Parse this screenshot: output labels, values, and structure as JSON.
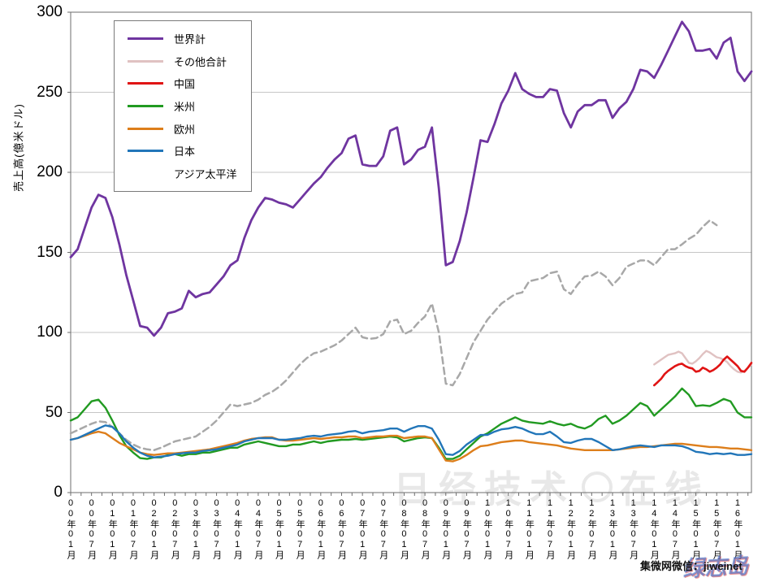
{
  "y_axis": {
    "title": "売上高(億米ドル)",
    "ticks": [
      300,
      250,
      200,
      150,
      100,
      50,
      0
    ],
    "min": 0,
    "max": 300
  },
  "x_axis": {
    "labels": [
      "00年01月",
      "00年07月",
      "01年01月",
      "01年07月",
      "02年01月",
      "02年07月",
      "03年01月",
      "03年07月",
      "04年01月",
      "04年07月",
      "05年01月",
      "05年07月",
      "06年01月",
      "06年07月",
      "07年01月",
      "07年07月",
      "08年01月",
      "08年07月",
      "09年01月",
      "09年07月",
      "10年01月",
      "10年07月",
      "11年01月",
      "11年07月",
      "12年01月",
      "12年07月",
      "13年01月",
      "13年07月",
      "14年01月",
      "14年07月",
      "15年01月",
      "15年07月",
      "16年01月"
    ],
    "months_per_label": 6
  },
  "legend": {
    "items": [
      "世界計",
      "その他合計",
      "中国",
      "米州",
      "欧州",
      "日本",
      "アジア太平洋"
    ]
  },
  "watermarks": {
    "center_part1": "日经技术",
    "center_part2": "在线",
    "bottom_black": "集微网微信：jiweinet",
    "bottom_color": "绿志岛"
  },
  "chart_data": {
    "type": "line",
    "title": "",
    "ylabel": "売上高(億米ドル)",
    "ylim": [
      0,
      300
    ],
    "x_unit": "month",
    "x_start": "2000-01",
    "x_end": "2016-05",
    "total_months": 196,
    "grid": "horizontal",
    "legend_position": "upper-left-inside",
    "series": [
      {
        "name": "世界計",
        "key": "world-total",
        "color": "#6f35a0",
        "style": "solid",
        "width": 2.8,
        "start_month": 0,
        "step": 2,
        "values": [
          147,
          152,
          165,
          178,
          186,
          184,
          172,
          155,
          136,
          120,
          104,
          103,
          98,
          103,
          112,
          113,
          115,
          126,
          122,
          124,
          125,
          130,
          135,
          142,
          145,
          159,
          170,
          178,
          184,
          183,
          181,
          180,
          178,
          183,
          188,
          193,
          197,
          203,
          208,
          212,
          221,
          223,
          205,
          204,
          204,
          210,
          226,
          228,
          205,
          208,
          214,
          216,
          228,
          190,
          142,
          144,
          157,
          175,
          197,
          220,
          219,
          230,
          243,
          251,
          262,
          252,
          249,
          247,
          247,
          252,
          251,
          237,
          228,
          238,
          242,
          242,
          245,
          245,
          234,
          240,
          244,
          252,
          264,
          263,
          259,
          267,
          276,
          285,
          294,
          288,
          276,
          276,
          277,
          271,
          281,
          284,
          263,
          257,
          263
        ]
      },
      {
        "name": "その他合計",
        "key": "other-total",
        "color": "#e0c2c2",
        "style": "solid",
        "width": 2.4,
        "start_month": 168,
        "step": 1,
        "values": [
          80,
          81.5,
          83,
          84.5,
          86,
          86.5,
          87,
          88,
          87,
          84,
          81,
          80.5,
          82,
          84,
          86.5,
          88.5,
          87.5,
          86,
          84.5,
          84,
          83,
          81.5,
          79,
          77,
          75.5,
          75,
          76,
          78,
          80
        ]
      },
      {
        "name": "中国",
        "key": "china",
        "color": "#e01414",
        "style": "solid",
        "width": 2.6,
        "start_month": 168,
        "step": 1,
        "values": [
          67,
          69,
          71,
          74,
          76,
          77.5,
          79,
          80,
          80.5,
          79,
          78,
          77.5,
          75.5,
          76,
          78,
          77,
          75.5,
          76.5,
          78,
          80,
          83,
          85,
          83,
          81,
          79,
          76,
          75.5,
          78,
          81
        ]
      },
      {
        "name": "米州",
        "key": "americas",
        "color": "#219a21",
        "style": "solid",
        "width": 2.4,
        "start_month": 0,
        "step": 2,
        "values": [
          45,
          47,
          52,
          57,
          58,
          53,
          45,
          36,
          29,
          25,
          21.5,
          21,
          22,
          22,
          23.5,
          24,
          23,
          24,
          24,
          25,
          25,
          26,
          27,
          28,
          28,
          30,
          31,
          32,
          31,
          30,
          29,
          29,
          30,
          30,
          31,
          32,
          31,
          32,
          32.5,
          33,
          33,
          33.5,
          33,
          33.5,
          34,
          34.5,
          35,
          34.5,
          32,
          33,
          34,
          34.5,
          34,
          28,
          21,
          21,
          23,
          27,
          31,
          35,
          37,
          40,
          43,
          45,
          47,
          45,
          44,
          43.5,
          43,
          44.5,
          43,
          42,
          43,
          41,
          40,
          42,
          46,
          48,
          43,
          45,
          48,
          52,
          56,
          54,
          48,
          52,
          56,
          60,
          65,
          61,
          54,
          54.5,
          54,
          56,
          58.5,
          57,
          50,
          47,
          47
        ]
      },
      {
        "name": "欧州",
        "key": "europe",
        "color": "#dd7e1b",
        "style": "solid",
        "width": 2.4,
        "start_month": 0,
        "step": 2,
        "values": [
          33,
          34,
          35.5,
          37,
          38,
          37,
          34,
          31,
          29,
          27,
          25,
          24,
          23.5,
          24,
          24.5,
          24.5,
          25,
          25.5,
          26,
          26.5,
          27,
          28,
          29,
          30,
          31,
          32.5,
          33.5,
          34,
          34.5,
          34.5,
          33,
          32.5,
          32.5,
          33,
          33.5,
          34,
          33.5,
          34,
          34.5,
          34.5,
          35,
          35,
          34,
          34.5,
          35,
          35,
          35.5,
          35.5,
          34,
          34.5,
          35,
          35,
          34,
          27,
          20,
          19.5,
          21,
          23.5,
          26.5,
          29,
          29.5,
          30.5,
          31.5,
          32,
          32.5,
          32.5,
          31.5,
          31,
          30.5,
          30,
          29.5,
          28.5,
          27.5,
          27,
          26.5,
          26.5,
          26.5,
          26.5,
          26.5,
          27,
          27.5,
          28,
          28.5,
          28.5,
          29,
          29.5,
          30,
          30.5,
          30.5,
          30,
          29.5,
          29,
          28.5,
          28.5,
          28,
          27.5,
          27.5,
          27,
          26.5
        ]
      },
      {
        "name": "日本",
        "key": "japan",
        "color": "#2276b9",
        "style": "solid",
        "width": 2.4,
        "start_month": 0,
        "step": 2,
        "values": [
          33,
          34,
          36,
          38,
          40,
          42,
          41,
          37,
          32,
          28,
          25,
          23,
          22,
          22.5,
          23,
          24,
          24.5,
          25,
          25,
          26,
          26.5,
          27,
          28,
          29,
          30,
          32,
          33,
          34,
          34,
          34,
          33,
          33,
          33.5,
          34,
          35,
          35.5,
          35,
          36,
          36.5,
          37,
          38,
          38.5,
          37,
          38,
          38.5,
          39,
          40,
          40,
          38,
          40,
          41.5,
          41.5,
          40,
          33,
          24,
          23.5,
          26,
          30,
          33,
          36,
          36,
          38,
          39.5,
          40,
          41,
          40,
          38,
          36.5,
          36.5,
          38,
          35,
          31.5,
          31,
          32.5,
          33.5,
          33.5,
          31.5,
          29,
          26.5,
          27,
          28,
          29,
          29.5,
          29,
          28.5,
          29.5,
          29.5,
          29.5,
          29,
          27.5,
          25.5,
          25,
          24,
          24.5,
          24,
          24.5,
          23.5,
          23.5,
          24
        ]
      },
      {
        "name": "アジア太平洋",
        "key": "asia-pacific",
        "color": "#a8a8a8",
        "style": "dashed",
        "width": 2.5,
        "start_month": 0,
        "step": 2,
        "values": [
          37,
          39,
          41,
          43,
          44.5,
          44,
          41,
          37,
          33,
          30,
          28,
          27,
          26.5,
          28,
          30,
          32,
          33,
          34,
          35,
          38,
          41,
          45,
          50,
          55,
          54,
          55,
          56,
          58,
          61,
          63,
          66,
          70,
          75,
          80,
          84,
          87,
          88,
          90,
          92,
          95,
          99,
          103,
          97,
          96,
          96.5,
          99,
          107,
          108,
          99,
          101,
          106,
          110,
          118,
          100,
          68,
          67,
          74,
          84,
          94,
          101,
          108,
          113,
          118,
          121,
          124,
          125,
          132,
          133,
          134,
          137,
          138,
          127,
          124,
          130,
          135,
          135.5,
          138,
          135,
          129.5,
          134,
          141,
          143,
          145,
          145,
          142,
          147,
          152,
          152,
          155,
          158.5,
          161,
          166,
          170,
          167
        ]
      }
    ]
  }
}
